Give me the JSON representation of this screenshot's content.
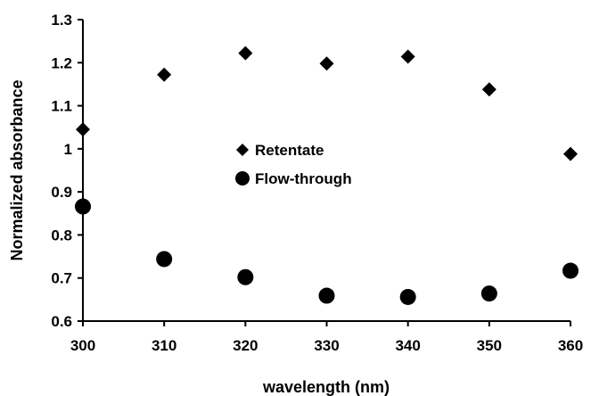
{
  "chart_data": {
    "type": "scatter",
    "title": "",
    "xlabel": "wavelength (nm)",
    "ylabel": "Normalized absorbance",
    "xlim": [
      300,
      360
    ],
    "ylim": [
      0.6,
      1.3
    ],
    "x_ticks": [
      "300",
      "310",
      "320",
      "330",
      "340",
      "350",
      "360"
    ],
    "y_ticks": [
      "0.6",
      "0.7",
      "0.8",
      "0.9",
      "1",
      "1.1",
      "1.2",
      "1.3"
    ],
    "x_tick_values": [
      300,
      310,
      320,
      330,
      340,
      350,
      360
    ],
    "y_tick_values": [
      0.6,
      0.7,
      0.8,
      0.9,
      1.0,
      1.1,
      1.2,
      1.3
    ],
    "grid": false,
    "legend_position": "center",
    "series": [
      {
        "name": "Retentate",
        "marker": "diamond",
        "color": "#000000",
        "x": [
          300,
          310,
          320,
          330,
          340,
          350,
          360
        ],
        "y": [
          1.045,
          1.172,
          1.222,
          1.198,
          1.214,
          1.138,
          0.988
        ]
      },
      {
        "name": "Flow-through",
        "marker": "circle",
        "color": "#000000",
        "x": [
          300,
          310,
          320,
          330,
          340,
          350,
          360
        ],
        "y": [
          0.866,
          0.744,
          0.702,
          0.659,
          0.656,
          0.664,
          0.717
        ]
      }
    ]
  }
}
